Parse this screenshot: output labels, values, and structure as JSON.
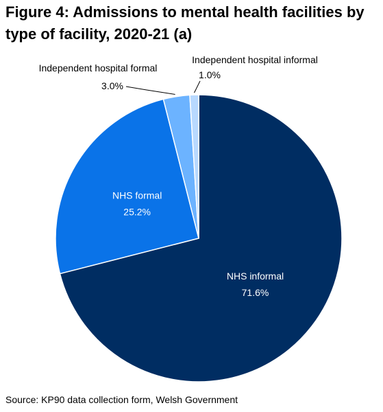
{
  "title": "Figure 4: Admissions to mental health facilities by type of facility, 2020-21 (a)",
  "source": "Source: KP90 data collection form, Welsh Government",
  "chart_data": {
    "type": "pie",
    "title": "Figure 4: Admissions to mental health facilities by type of facility, 2020-21 (a)",
    "start_angle_deg": 0,
    "direction": "clockwise",
    "slices": [
      {
        "label": "NHS informal",
        "value": 71.6,
        "value_label": "71.6%",
        "color": "#002D62",
        "text_color": "#ffffff"
      },
      {
        "label": "NHS formal",
        "value": 25.2,
        "value_label": "25.2%",
        "color": "#0A73E8",
        "text_color": "#ffffff"
      },
      {
        "label": "Independent hospital formal",
        "value": 3.0,
        "value_label": "3.0%",
        "color": "#6CB3FF",
        "text_color": "#000000"
      },
      {
        "label": "Independent hospital informal",
        "value": 1.0,
        "value_label": "1.0%",
        "color": "#B8D9FF",
        "text_color": "#000000"
      }
    ]
  }
}
